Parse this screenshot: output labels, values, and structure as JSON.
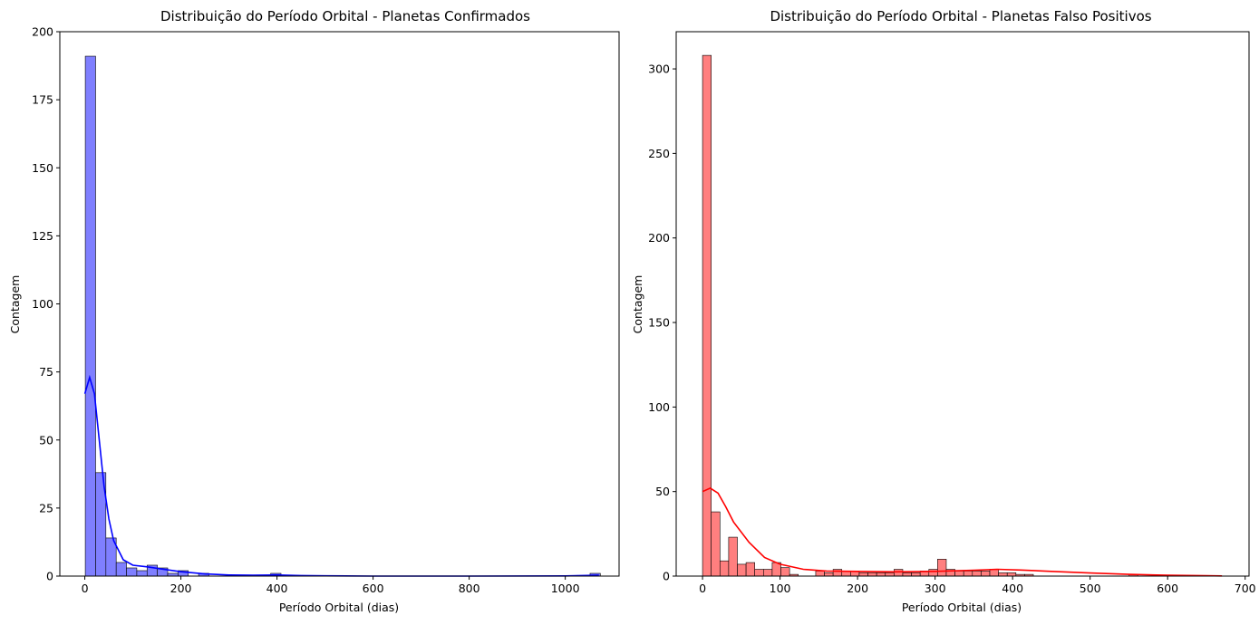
{
  "chart_data": [
    {
      "type": "bar",
      "title": "Distribuição do Período Orbital - Planetas Confirmados",
      "xlabel": "Período Orbital (dias)",
      "ylabel": "Contagem",
      "xlim": [
        -52,
        1112
      ],
      "ylim": [
        0,
        200
      ],
      "xticks": [
        0,
        200,
        400,
        600,
        800,
        1000
      ],
      "yticks": [
        0,
        25,
        50,
        75,
        100,
        125,
        150,
        175,
        200
      ],
      "bin_start": 1,
      "bin_width": 21.44,
      "counts": [
        191,
        38,
        14,
        5,
        3,
        2,
        4,
        3,
        1,
        2,
        0,
        1,
        0,
        0,
        0,
        0,
        0,
        0,
        1,
        0,
        0,
        0,
        0,
        0,
        0,
        0,
        0,
        0,
        0,
        0,
        0,
        0,
        0,
        0,
        0,
        0,
        0,
        0,
        0,
        0,
        0,
        0,
        0,
        0,
        0,
        0,
        0,
        0,
        0,
        1
      ],
      "kde": [
        [
          0,
          67
        ],
        [
          10,
          73
        ],
        [
          20,
          67
        ],
        [
          30,
          50
        ],
        [
          40,
          33
        ],
        [
          50,
          21
        ],
        [
          60,
          13
        ],
        [
          80,
          6
        ],
        [
          100,
          4
        ],
        [
          130,
          3.4
        ],
        [
          160,
          2.6
        ],
        [
          200,
          1.6
        ],
        [
          250,
          0.8
        ],
        [
          300,
          0.4
        ],
        [
          350,
          0.3
        ],
        [
          400,
          0.4
        ],
        [
          450,
          0.2
        ],
        [
          500,
          0.1
        ],
        [
          600,
          0
        ],
        [
          800,
          0
        ],
        [
          1000,
          0.05
        ],
        [
          1070,
          0.3
        ]
      ],
      "bar_color": "#7f7fff",
      "line_color": "#0000ff"
    },
    {
      "type": "bar",
      "title": "Distribuição do Período Orbital - Planetas Falso Positivos",
      "xlabel": "Período Orbital (dias)",
      "ylabel": "Contagem",
      "xlim": [
        -34,
        705
      ],
      "ylim": [
        0,
        322
      ],
      "xticks": [
        0,
        100,
        200,
        300,
        400,
        500,
        600,
        700
      ],
      "yticks": [
        0,
        50,
        100,
        150,
        200,
        250,
        300
      ],
      "bin_start": 0,
      "bin_width": 11.23,
      "counts": [
        308,
        38,
        9,
        23,
        7,
        8,
        4,
        4,
        8,
        5,
        1,
        0,
        0,
        3,
        2,
        4,
        3,
        3,
        2,
        2,
        2,
        2,
        4,
        2,
        2,
        3,
        4,
        10,
        4,
        3,
        3,
        3,
        3,
        4,
        2,
        2,
        1,
        1,
        0,
        0,
        0,
        0,
        0,
        0,
        0,
        0,
        0,
        0,
        0,
        1
      ],
      "kde": [
        [
          0,
          50
        ],
        [
          10,
          52
        ],
        [
          20,
          49
        ],
        [
          30,
          41
        ],
        [
          40,
          32
        ],
        [
          60,
          20
        ],
        [
          80,
          11
        ],
        [
          100,
          7
        ],
        [
          130,
          4
        ],
        [
          160,
          3
        ],
        [
          200,
          2.8
        ],
        [
          250,
          2.5
        ],
        [
          300,
          2.8
        ],
        [
          350,
          3.5
        ],
        [
          380,
          4
        ],
        [
          410,
          3.6
        ],
        [
          450,
          2.8
        ],
        [
          500,
          1.8
        ],
        [
          550,
          1
        ],
        [
          600,
          0.5
        ],
        [
          650,
          0.2
        ],
        [
          670,
          0.1
        ]
      ],
      "bar_color": "#ff7f7f",
      "line_color": "#ff0000"
    }
  ]
}
